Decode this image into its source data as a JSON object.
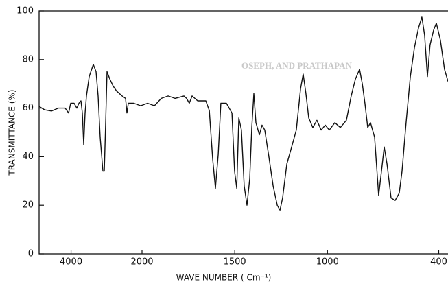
{
  "chart_data": {
    "type": "line",
    "xlabel": "WAVE NUMBER  ( Cm⁻¹)",
    "ylabel": "TRANSMITTANCE (%)",
    "annotation": "OSEPH, AND PRATHAPAN",
    "x_scale": "two-scale",
    "xlim": [
      4900,
      350
    ],
    "xticks": [
      4000,
      2000,
      1500,
      1000,
      400
    ],
    "ylim": [
      0,
      100
    ],
    "yticks": [
      0,
      20,
      40,
      60,
      80,
      100
    ],
    "series": [
      {
        "color": "#111111",
        "x": [
          4900,
          4745,
          4552,
          4359,
          4165,
          4069,
          4011,
          3914,
          3837,
          3779,
          3721,
          3682,
          3643,
          3605,
          3566,
          3489,
          3373,
          3295,
          3237,
          3179,
          3102,
          3063,
          3025,
          2986,
          2909,
          2812,
          2715,
          2561,
          2464,
          2425,
          2387,
          2232,
          2039,
          1970,
          1933,
          1896,
          1859,
          1822,
          1774,
          1760,
          1745,
          1730,
          1700,
          1656,
          1637,
          1619,
          1604,
          1589,
          1575,
          1545,
          1515,
          1501,
          1489,
          1478,
          1464,
          1449,
          1434,
          1419,
          1408,
          1397,
          1386,
          1367,
          1353,
          1338,
          1316,
          1293,
          1271,
          1256,
          1242,
          1219,
          1193,
          1168,
          1145,
          1131,
          1116,
          1101,
          1079,
          1057,
          1034,
          1012,
          990,
          960,
          931,
          898,
          872,
          849,
          827,
          812,
          798,
          783,
          768,
          746,
          724,
          709,
          694,
          679,
          657,
          635,
          613,
          598,
          576,
          553,
          531,
          509,
          491,
          476,
          461,
          447,
          428,
          413,
          391,
          369,
          350
        ],
        "values": [
          60.7,
          59.3,
          58.8,
          60,
          60,
          58,
          62,
          62,
          60,
          62,
          63,
          58,
          45,
          58,
          65,
          73,
          78,
          75,
          65,
          48,
          34,
          34,
          54,
          75,
          72,
          69,
          67,
          65,
          64,
          58,
          62,
          62,
          61,
          62,
          61,
          64,
          65,
          64,
          65,
          64,
          62,
          65,
          63,
          63,
          59,
          39,
          27,
          41,
          62,
          62,
          58,
          34,
          27,
          56,
          51,
          28,
          20,
          31,
          52,
          66,
          54,
          49,
          53,
          51,
          40,
          28,
          20,
          18,
          23,
          37,
          44,
          51,
          68,
          74,
          66,
          56,
          52,
          55,
          51,
          53,
          51,
          54,
          52,
          55,
          65,
          72,
          76,
          70,
          62,
          52,
          54,
          48,
          24,
          34,
          44,
          37,
          23,
          22,
          25,
          34,
          54,
          73,
          85,
          93,
          97.5,
          90,
          73,
          86,
          92,
          95,
          88,
          76,
          71
        ]
      }
    ]
  }
}
